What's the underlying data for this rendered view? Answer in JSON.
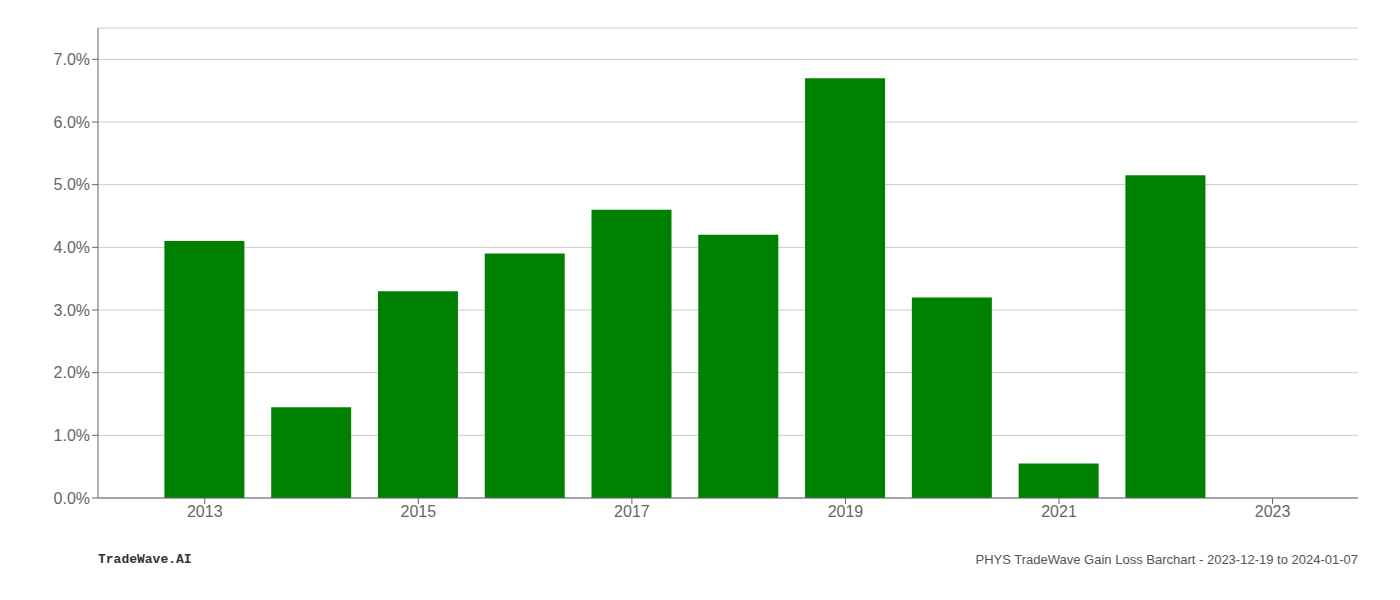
{
  "chart_data": {
    "type": "bar",
    "x": [
      2013,
      2014,
      2015,
      2016,
      2017,
      2018,
      2019,
      2020,
      2021,
      2022
    ],
    "values": [
      0.041,
      0.0145,
      0.033,
      0.039,
      0.046,
      0.042,
      0.067,
      0.032,
      0.0055,
      0.0515
    ],
    "color": "#008000",
    "xlim": [
      2012,
      2023.8
    ],
    "xticks": [
      2013,
      2015,
      2017,
      2019,
      2021,
      2023
    ],
    "ylim": [
      0,
      0.075
    ],
    "yticks": [
      {
        "value": 0.0,
        "label": "0.0%"
      },
      {
        "value": 0.01,
        "label": "1.0%"
      },
      {
        "value": 0.02,
        "label": "2.0%"
      },
      {
        "value": 0.03,
        "label": "3.0%"
      },
      {
        "value": 0.04,
        "label": "4.0%"
      },
      {
        "value": 0.05,
        "label": "5.0%"
      },
      {
        "value": 0.06,
        "label": "6.0%"
      },
      {
        "value": 0.07,
        "label": "7.0%"
      }
    ],
    "grid": "y",
    "annotations": [
      "TradeWave.AI",
      "PHYS TradeWave Gain Loss Barchart - 2023-12-19 to 2024-01-07"
    ]
  }
}
